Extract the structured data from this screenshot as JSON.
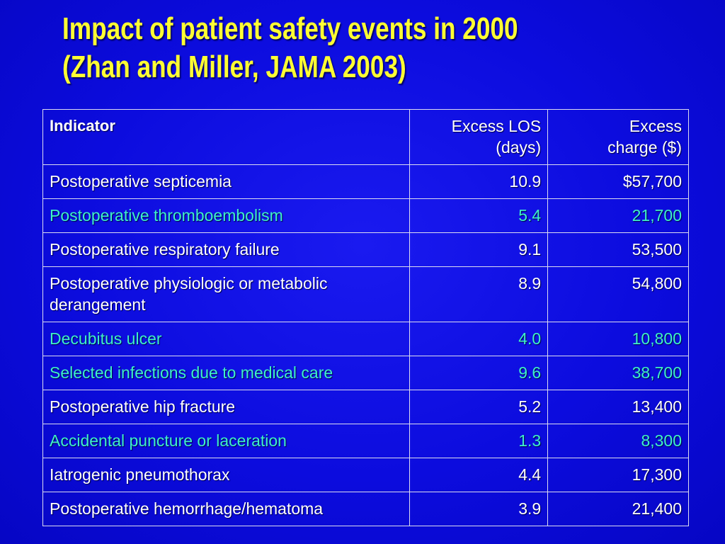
{
  "slide": {
    "title_line1": "Impact of patient safety events in 2000",
    "title_line2": "(Zhan and Miller, JAMA 2003)"
  },
  "table": {
    "headers": {
      "indicator": "Indicator",
      "excess_los_line1": "Excess LOS",
      "excess_los_line2": "(days)",
      "excess_charge_line1": "Excess",
      "excess_charge_line2": "charge ($)"
    },
    "rows": [
      {
        "indicator": "Postoperative septicemia",
        "los": "10.9",
        "charge": "$57,700"
      },
      {
        "indicator": "Postoperative thromboembolism",
        "los": "5.4",
        "charge": "21,700"
      },
      {
        "indicator": "Postoperative respiratory failure",
        "los": "9.1",
        "charge": "53,500"
      },
      {
        "indicator": "Postoperative physiologic or metabolic derangement",
        "los": "8.9",
        "charge": "54,800"
      },
      {
        "indicator": "Decubitus ulcer",
        "los": "4.0",
        "charge": "10,800"
      },
      {
        "indicator": "Selected infections due to medical care",
        "los": "9.6",
        "charge": "38,700"
      },
      {
        "indicator": "Postoperative hip fracture",
        "los": "5.2",
        "charge": "13,400"
      },
      {
        "indicator": "Accidental puncture or laceration",
        "los": "1.3",
        "charge": "8,300"
      },
      {
        "indicator": "Iatrogenic pneumothorax",
        "los": "4.4",
        "charge": "17,300"
      },
      {
        "indicator": "Postoperative hemorrhage/hematoma",
        "los": "3.9",
        "charge": "21,400"
      }
    ]
  },
  "colors": {
    "background": "#0c0cde",
    "title": "#ffff33",
    "text": "#ffffff",
    "highlight_text": "#3ff0c8"
  }
}
